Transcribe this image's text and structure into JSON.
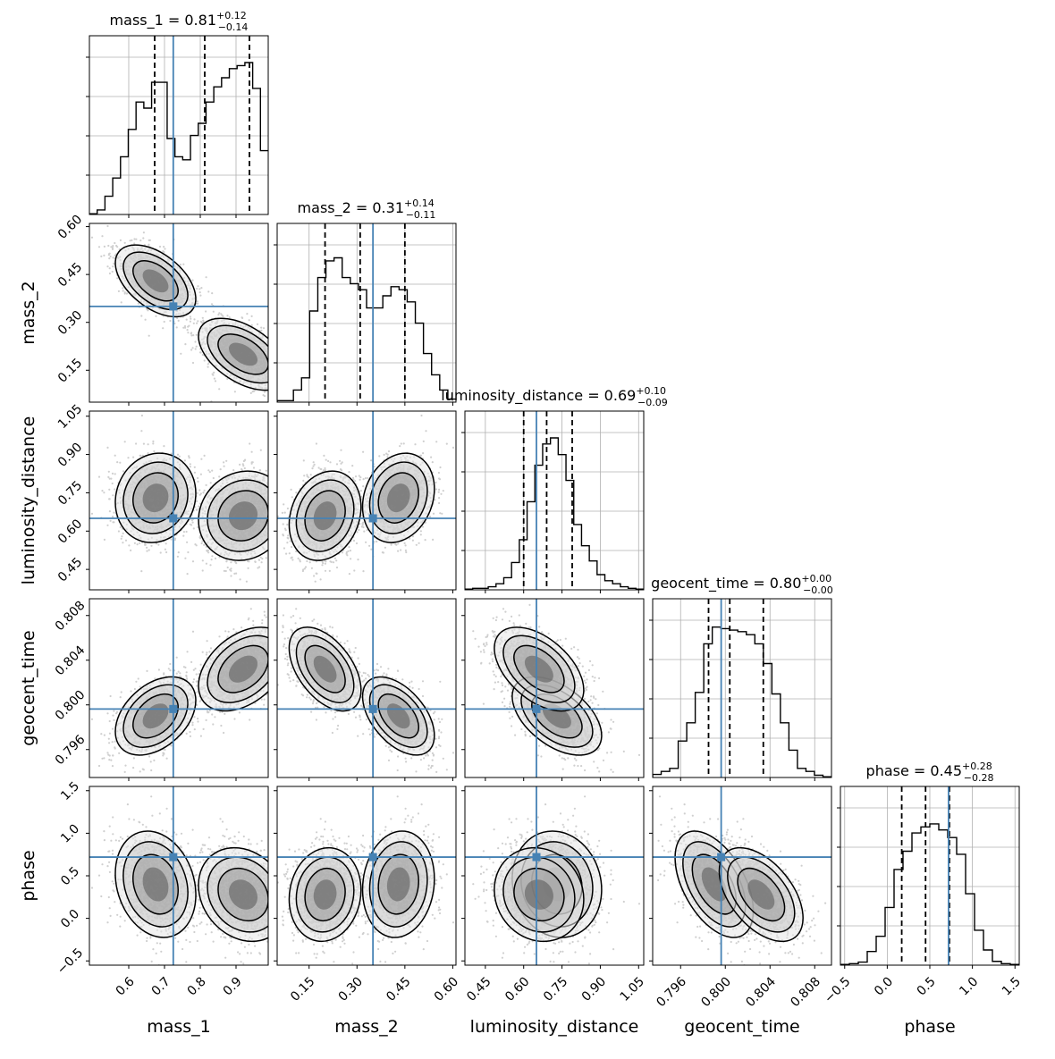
{
  "chart_data": {
    "type": "corner",
    "parameters": [
      "mass_1",
      "mass_2",
      "luminosity_distance",
      "geocent_time",
      "phase"
    ],
    "axis_labels": [
      "mass_1",
      "mass_2",
      "luminosity_distance",
      "geocent_time",
      "phase"
    ],
    "ranges": [
      [
        0.49,
        0.99
      ],
      [
        0.05,
        0.61
      ],
      [
        0.37,
        1.07
      ],
      [
        0.7935,
        0.8095
      ],
      [
        -0.55,
        1.55
      ]
    ],
    "ticks": [
      [
        "0.6",
        "0.7",
        "0.8",
        "0.9"
      ],
      [
        "0.15",
        "0.30",
        "0.45",
        "0.60"
      ],
      [
        "0.45",
        "0.60",
        "0.75",
        "0.90",
        "1.05"
      ],
      [
        "0.796",
        "0.800",
        "0.804",
        "0.808"
      ],
      [
        "−0.5",
        "0.0",
        "0.5",
        "1.0",
        "1.5"
      ]
    ],
    "titles": [
      {
        "label": "mass_1",
        "median": "0.81",
        "plus": "+0.12",
        "minus": "−0.14"
      },
      {
        "label": "mass_2",
        "median": "0.31",
        "plus": "+0.14",
        "minus": "−0.11"
      },
      {
        "label": "luminosity_distance",
        "median": "0.69",
        "plus": "+0.10",
        "minus": "−0.09"
      },
      {
        "label": "geocent_time",
        "median": "0.80",
        "plus": "+0.00",
        "minus": "−0.00"
      },
      {
        "label": "phase",
        "median": "0.45",
        "plus": "+0.28",
        "minus": "−0.28"
      }
    ],
    "truths": [
      0.7245,
      0.35,
      0.65,
      0.79963,
      0.72
    ],
    "quantiles": [
      [
        0.6725,
        0.8125,
        0.9375
      ],
      [
        0.2,
        0.31,
        0.45
      ],
      [
        0.6,
        0.69,
        0.79
      ],
      [
        0.7985,
        0.8004,
        0.8034
      ],
      [
        0.17,
        0.45,
        0.73
      ]
    ],
    "histograms": [
      [
        0.005,
        0.03,
        0.12,
        0.24,
        0.38,
        0.56,
        0.74,
        0.7,
        0.87,
        0.87,
        0.5,
        0.38,
        0.36,
        0.52,
        0.6,
        0.74,
        0.84,
        0.9,
        0.96,
        0.98,
        1.0,
        0.83,
        0.42
      ],
      [
        0.01,
        0.01,
        0.08,
        0.16,
        0.6,
        0.82,
        0.93,
        0.95,
        0.82,
        0.78,
        0.74,
        0.62,
        0.62,
        0.7,
        0.76,
        0.74,
        0.66,
        0.52,
        0.32,
        0.18,
        0.08,
        0.02
      ],
      [
        0.005,
        0.01,
        0.01,
        0.02,
        0.04,
        0.08,
        0.18,
        0.33,
        0.58,
        0.82,
        0.96,
        1.0,
        0.89,
        0.72,
        0.43,
        0.29,
        0.19,
        0.1,
        0.06,
        0.04,
        0.02,
        0.01,
        0.005
      ],
      [
        0.02,
        0.04,
        0.06,
        0.24,
        0.36,
        0.56,
        0.88,
        0.99,
        0.98,
        0.97,
        0.96,
        0.94,
        0.88,
        0.75,
        0.55,
        0.36,
        0.18,
        0.06,
        0.04,
        0.015,
        0.005
      ],
      [
        0.005,
        0.01,
        0.02,
        0.09,
        0.19,
        0.38,
        0.63,
        0.75,
        0.87,
        0.91,
        0.93,
        0.89,
        0.84,
        0.73,
        0.47,
        0.23,
        0.1,
        0.025,
        0.01,
        0.005
      ]
    ],
    "grid": true,
    "line_color": "#000000",
    "truth_color": "#4682b4",
    "scatter_color": "#cfcfcf"
  }
}
